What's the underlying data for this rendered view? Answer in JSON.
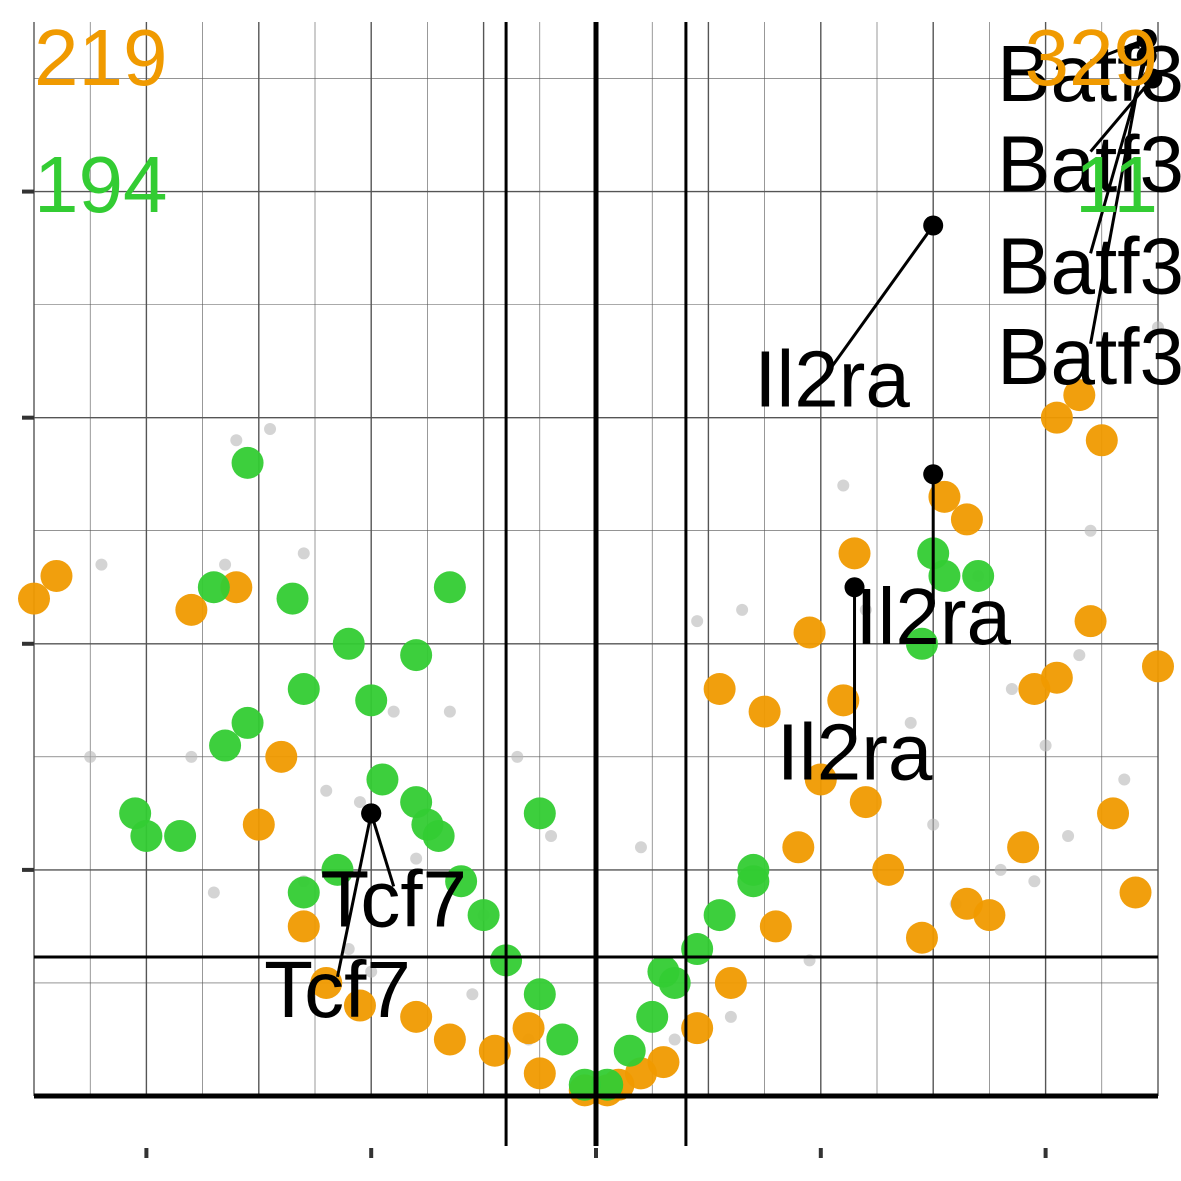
{
  "colors": {
    "up": "#f09a00",
    "down": "#33cc33",
    "ns": "#b8b8b8",
    "grid": "#555555",
    "threshold": "#000000"
  },
  "counts": {
    "up_left": "219",
    "down_left": "194",
    "up_right": "329",
    "down_right": "11"
  },
  "chart_data": {
    "type": "scatter",
    "title": "",
    "xlabel": "",
    "ylabel": "",
    "xlim": [
      -5,
      5
    ],
    "ylim": [
      0,
      9.5
    ],
    "grid": true,
    "legend": "none",
    "thresholds": {
      "x": [
        -0.8,
        0.8
      ],
      "y": 1.23
    },
    "series": [
      {
        "category": "not-significant",
        "points": [
          [
            -3.2,
            5.8
          ],
          [
            -2.9,
            5.9
          ],
          [
            -3.3,
            4.7
          ],
          [
            -3.6,
            3.0
          ],
          [
            -2.4,
            2.7
          ],
          [
            -2.1,
            2.6
          ],
          [
            -1.8,
            3.4
          ],
          [
            -1.3,
            3.4
          ],
          [
            -1.6,
            2.1
          ],
          [
            -2.2,
            1.3
          ],
          [
            -2.0,
            1.1
          ],
          [
            -1.1,
            0.9
          ],
          [
            -0.7,
            3.0
          ],
          [
            -0.4,
            2.3
          ],
          [
            0.4,
            2.2
          ],
          [
            0.9,
            4.2
          ],
          [
            1.3,
            4.3
          ],
          [
            2.2,
            5.4
          ],
          [
            2.4,
            4.3
          ],
          [
            3.4,
            4.6
          ],
          [
            3.7,
            3.6
          ],
          [
            4.0,
            3.1
          ],
          [
            4.4,
            5.0
          ],
          [
            4.2,
            2.3
          ],
          [
            3.2,
            1.7
          ],
          [
            3.0,
            2.4
          ],
          [
            2.8,
            3.3
          ],
          [
            1.9,
            1.2
          ],
          [
            -3.4,
            1.8
          ],
          [
            -2.6,
            1.9
          ],
          [
            -1.0,
            1.6
          ],
          [
            1.2,
            0.7
          ],
          [
            0.7,
            0.5
          ],
          [
            -0.6,
            0.5
          ],
          [
            4.7,
            2.8
          ],
          [
            5.0,
            6.8
          ],
          [
            3.6,
            2.0
          ],
          [
            -2.6,
            4.8
          ],
          [
            -4.4,
            4.7
          ],
          [
            -4.5,
            3.0
          ],
          [
            3.9,
            1.9
          ],
          [
            4.3,
            3.9
          ]
        ]
      },
      {
        "category": "up",
        "points": [
          [
            -5.5,
            5.2
          ],
          [
            -5.0,
            4.4
          ],
          [
            -4.8,
            4.6
          ],
          [
            -3.6,
            4.3
          ],
          [
            -3.2,
            4.5
          ],
          [
            -2.8,
            3.0
          ],
          [
            -3.0,
            2.4
          ],
          [
            -2.6,
            1.5
          ],
          [
            -2.4,
            1.0
          ],
          [
            -2.1,
            0.8
          ],
          [
            -1.6,
            0.7
          ],
          [
            -1.3,
            0.5
          ],
          [
            -0.9,
            0.4
          ],
          [
            -0.5,
            0.2
          ],
          [
            0.2,
            0.1
          ],
          [
            0.6,
            0.3
          ],
          [
            0.9,
            0.6
          ],
          [
            1.2,
            1.0
          ],
          [
            1.6,
            1.5
          ],
          [
            1.8,
            2.2
          ],
          [
            2.0,
            2.8
          ],
          [
            2.2,
            3.5
          ],
          [
            2.4,
            2.6
          ],
          [
            2.6,
            2.0
          ],
          [
            2.9,
            1.4
          ],
          [
            3.3,
            1.7
          ],
          [
            3.5,
            1.6
          ],
          [
            3.8,
            2.2
          ],
          [
            3.9,
            3.6
          ],
          [
            4.1,
            3.7
          ],
          [
            4.4,
            4.2
          ],
          [
            4.6,
            2.5
          ],
          [
            5.0,
            3.8
          ],
          [
            1.1,
            3.6
          ],
          [
            1.5,
            3.4
          ],
          [
            1.9,
            4.1
          ],
          [
            2.3,
            4.8
          ],
          [
            3.1,
            5.3
          ],
          [
            3.3,
            5.1
          ],
          [
            4.1,
            6.0
          ],
          [
            4.3,
            6.2
          ],
          [
            4.5,
            5.8
          ],
          [
            5.4,
            3.5
          ],
          [
            4.8,
            1.8
          ],
          [
            -0.6,
            0.6
          ],
          [
            0.4,
            0.2
          ],
          [
            -0.1,
            0.05
          ],
          [
            0.1,
            0.05
          ]
        ]
      },
      {
        "category": "down",
        "points": [
          [
            -3.7,
            2.3
          ],
          [
            -3.4,
            4.5
          ],
          [
            -3.1,
            5.6
          ],
          [
            -2.7,
            4.4
          ],
          [
            -2.6,
            3.6
          ],
          [
            -2.2,
            4.0
          ],
          [
            -2.0,
            3.5
          ],
          [
            -1.9,
            2.8
          ],
          [
            -1.6,
            2.6
          ],
          [
            -1.4,
            2.3
          ],
          [
            -1.2,
            1.9
          ],
          [
            -1.0,
            1.6
          ],
          [
            -0.8,
            1.2
          ],
          [
            -0.5,
            0.9
          ],
          [
            -0.3,
            0.5
          ],
          [
            -0.1,
            0.1
          ],
          [
            0.1,
            0.1
          ],
          [
            0.3,
            0.4
          ],
          [
            0.5,
            0.7
          ],
          [
            0.7,
            1.0
          ],
          [
            0.9,
            1.3
          ],
          [
            1.1,
            1.6
          ],
          [
            1.4,
            1.9
          ],
          [
            0.6,
            1.1
          ],
          [
            -2.6,
            1.8
          ],
          [
            -4.1,
            2.5
          ],
          [
            -4.0,
            2.3
          ],
          [
            -3.3,
            3.1
          ],
          [
            -3.1,
            3.3
          ],
          [
            -1.3,
            4.5
          ],
          [
            -1.6,
            3.9
          ],
          [
            3.0,
            4.8
          ],
          [
            3.1,
            4.6
          ],
          [
            2.9,
            4.0
          ],
          [
            3.4,
            4.6
          ],
          [
            1.4,
            2.0
          ],
          [
            -1.5,
            2.4
          ],
          [
            -2.3,
            2.0
          ],
          [
            -0.5,
            2.5
          ]
        ]
      }
    ],
    "labels": [
      {
        "text": "Batf3",
        "x": 4.4,
        "y": 8.8,
        "px": 4.9,
        "py": 9.35
      },
      {
        "text": "Batf3",
        "x": 4.4,
        "y": 8.0,
        "px": 4.95,
        "py": 9.0
      },
      {
        "text": "Batf3",
        "x": 4.4,
        "y": 7.1,
        "px": 4.9,
        "py": 9.2
      },
      {
        "text": "Batf3",
        "x": 4.4,
        "y": 6.3,
        "px": 4.9,
        "py": 9.35
      },
      {
        "text": "Il2ra",
        "x": 2.1,
        "y": 6.1,
        "px": 3.0,
        "py": 7.7
      },
      {
        "text": "Il2ra",
        "x": 3.0,
        "y": 4.0,
        "px": 3.0,
        "py": 5.5
      },
      {
        "text": "Il2ra",
        "x": 2.3,
        "y": 2.8,
        "px": 2.3,
        "py": 4.5
      },
      {
        "text": "Tcf7",
        "x": -1.8,
        "y": 1.5,
        "px": -2.0,
        "py": 2.5
      },
      {
        "text": "Tcf7",
        "x": -2.3,
        "y": 0.7,
        "px": -2.0,
        "py": 2.5
      }
    ]
  }
}
